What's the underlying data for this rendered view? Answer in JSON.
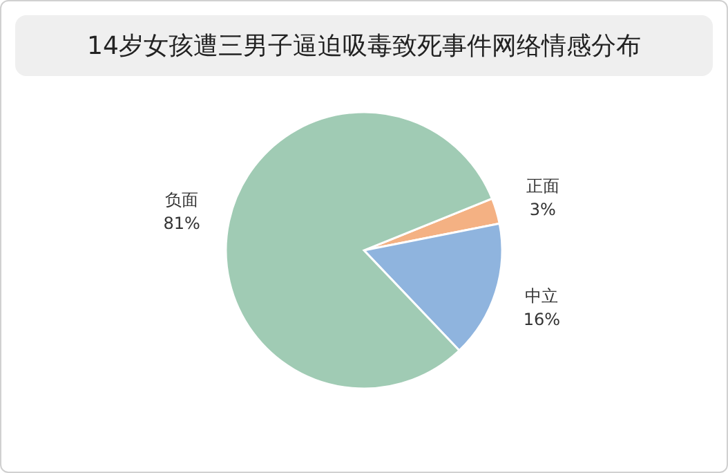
{
  "chart_data": {
    "type": "pie",
    "title": "14岁女孩遭三男子逼迫吸毒致死事件网络情感分布",
    "categories": [
      "正面",
      "中立",
      "负面"
    ],
    "values": [
      3,
      16,
      81
    ],
    "colors": [
      "#f4b183",
      "#8fb4de",
      "#a0cbb4"
    ],
    "value_labels": [
      "3%",
      "16%",
      "81%"
    ]
  }
}
